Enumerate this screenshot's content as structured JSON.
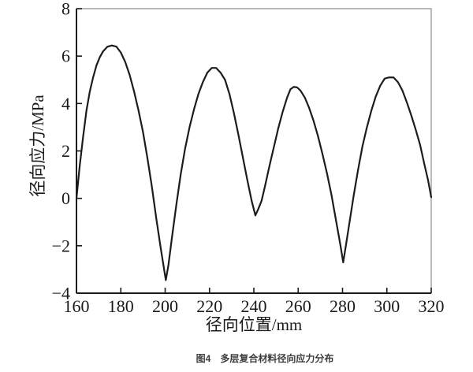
{
  "figure": {
    "caption": "图4　多层复合材料径向应力分布"
  },
  "colors": {
    "line": "#1c1c1c",
    "axis": "#1a1a1a",
    "frame": "#8c8c8c",
    "text": "#1a1a1a",
    "caption_text": "#3d3d3d",
    "background": "#ffffff"
  },
  "chart_data": {
    "type": "line",
    "title": "",
    "xlabel": "径向位置/mm",
    "ylabel": "径向应力/MPa",
    "xlim": [
      160,
      320
    ],
    "ylim": [
      -4,
      8
    ],
    "grid": false,
    "legend": "none",
    "x_ticks": [
      160,
      180,
      200,
      220,
      240,
      260,
      280,
      300,
      320
    ],
    "x_tick_labels": [
      "160",
      "180",
      "200",
      "220",
      "240",
      "260",
      "280",
      "300",
      "320"
    ],
    "y_ticks": [
      8,
      6,
      4,
      2,
      0,
      -2,
      -4
    ],
    "y_tick_labels": [
      "8",
      "6",
      "4",
      "2",
      "0",
      "−2",
      "−4"
    ],
    "peaks": [
      {
        "x": 176.5,
        "y": 6.45
      },
      {
        "x": 220.5,
        "y": 5.5
      },
      {
        "x": 257.5,
        "y": 4.7
      },
      {
        "x": 302,
        "y": 5.1
      }
    ],
    "valleys": [
      {
        "x": 200.3,
        "y": -3.45
      },
      {
        "x": 240.7,
        "y": -0.72
      },
      {
        "x": 280.3,
        "y": -2.7
      }
    ],
    "series": [
      {
        "name": "径向应力",
        "x": [
          160,
          161.5,
          163,
          164.5,
          166,
          167.5,
          169,
          170.5,
          172,
          174,
          176,
          178,
          180,
          182,
          184,
          186,
          188,
          190,
          192,
          194,
          196,
          198,
          200.3,
          201.5,
          203,
          205,
          207,
          209,
          211,
          213,
          215,
          217,
          219,
          221,
          223,
          225,
          227,
          229,
          231,
          233,
          235,
          237,
          239,
          240.7,
          242,
          243.5,
          245,
          247,
          249,
          251,
          253,
          255,
          256.5,
          258,
          259.5,
          261,
          263,
          265,
          267,
          269,
          271,
          273,
          275,
          277,
          279,
          280.3,
          281.5,
          283,
          285,
          287,
          289,
          291,
          293,
          295,
          297,
          299,
          301,
          303,
          305,
          307,
          309,
          311,
          313,
          315,
          317,
          318.5,
          320
        ],
        "y": [
          0.0,
          1.4,
          2.6,
          3.7,
          4.5,
          5.1,
          5.6,
          5.95,
          6.2,
          6.4,
          6.45,
          6.4,
          6.15,
          5.75,
          5.2,
          4.5,
          3.7,
          2.8,
          1.7,
          0.5,
          -0.85,
          -2.1,
          -3.45,
          -2.8,
          -1.7,
          -0.3,
          1.0,
          2.1,
          3.0,
          3.75,
          4.4,
          4.9,
          5.3,
          5.5,
          5.5,
          5.3,
          5.0,
          4.4,
          3.6,
          2.7,
          1.75,
          0.8,
          -0.1,
          -0.72,
          -0.45,
          -0.1,
          0.5,
          1.35,
          2.15,
          2.95,
          3.65,
          4.25,
          4.6,
          4.7,
          4.68,
          4.55,
          4.25,
          3.8,
          3.25,
          2.6,
          1.85,
          1.05,
          0.15,
          -0.9,
          -1.95,
          -2.7,
          -2.0,
          -1.1,
          0.1,
          1.2,
          2.2,
          3.0,
          3.7,
          4.3,
          4.75,
          5.05,
          5.1,
          5.1,
          4.9,
          4.55,
          4.05,
          3.5,
          2.9,
          2.25,
          1.4,
          0.8,
          0.05
        ]
      }
    ]
  }
}
